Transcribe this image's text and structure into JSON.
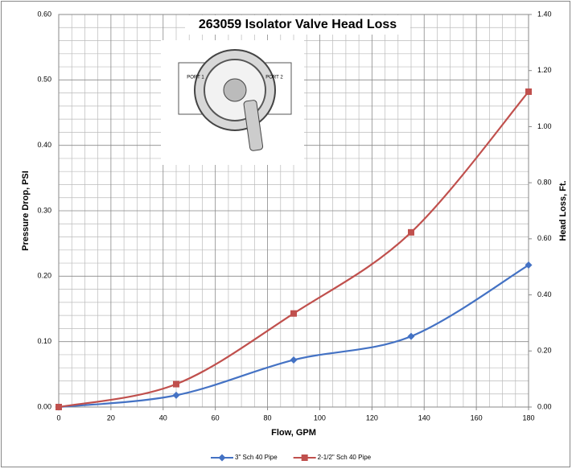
{
  "chart_data": {
    "type": "line",
    "title": "263059 Isolator Valve Head Loss",
    "x_label": "Flow, GPM",
    "y_label": "Pressure Drop, PSI",
    "y2_label": "Head Loss, Ft.",
    "annotations": [
      "PORT 1",
      "PORT 2"
    ],
    "x": [
      0,
      45,
      90,
      135,
      180
    ],
    "series": [
      {
        "name": "3\" Sch 40 Pipe",
        "color": "#4472c4",
        "marker": "diamond",
        "values": [
          0,
          0.018,
          0.072,
          0.108,
          0.217
        ]
      },
      {
        "name": "2-1/2\" Sch 40 Pipe",
        "color": "#c0504d",
        "marker": "square",
        "values": [
          0,
          0.035,
          0.143,
          0.267,
          0.482
        ]
      }
    ],
    "xlim": [
      0,
      180
    ],
    "xticks": [
      0,
      20,
      40,
      60,
      80,
      100,
      120,
      140,
      160,
      180
    ],
    "ylim": [
      0,
      0.6
    ],
    "yticks": [
      {
        "value": 0,
        "label": "0.00"
      },
      {
        "value": 0.1,
        "label": "0.10"
      },
      {
        "value": 0.2,
        "label": "0.20"
      },
      {
        "value": 0.3,
        "label": "0.30"
      },
      {
        "value": 0.4,
        "label": "0.40"
      },
      {
        "value": 0.5,
        "label": "0.50"
      },
      {
        "value": 0.6,
        "label": "0.60"
      }
    ],
    "y2lim": [
      0,
      1.4
    ],
    "y2ticks": [
      {
        "value": 0,
        "label": "0.00"
      },
      {
        "value": 0.2,
        "label": "0.20"
      },
      {
        "value": 0.4,
        "label": "0.40"
      },
      {
        "value": 0.6,
        "label": "0.60"
      },
      {
        "value": 0.8,
        "label": "0.80"
      },
      {
        "value": 1.0,
        "label": "1.00"
      },
      {
        "value": 1.2,
        "label": "1.20"
      },
      {
        "value": 1.4,
        "label": "1.40"
      }
    ],
    "grid": true,
    "minor_grid": true,
    "legend": "bottom"
  }
}
